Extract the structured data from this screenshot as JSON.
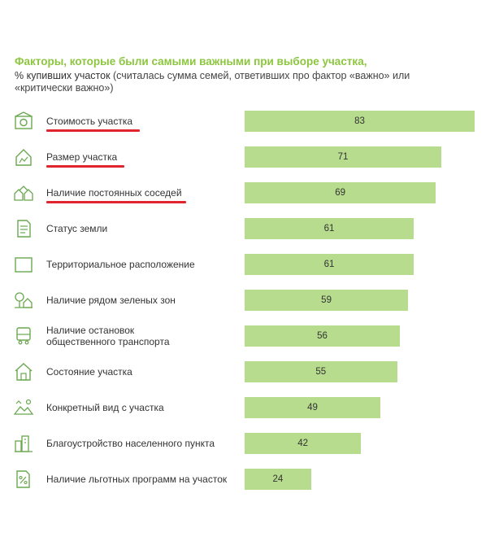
{
  "header": {
    "title": "Факторы, которые были самыми важными при выборе участка,",
    "subtitle_main": "% купивших участок",
    "subtitle_rest": " (считалась сумма семей, ответивших про фактор «важно» или «критически важно»)"
  },
  "colors": {
    "title": "#8cc63f",
    "bar": "#b7dc8d",
    "underline": "#e1252f",
    "icon": "#6aa84f"
  },
  "chart_data": {
    "type": "bar",
    "orientation": "horizontal",
    "title": "Факторы, которые были самыми важными при выборе участка,",
    "subtitle": "% купивших участок (считалась сумма семей, ответивших про фактор «важно» или «критически важно»)",
    "categories": [
      "Стоимость участка",
      "Размер участка",
      "Наличие постоянных соседей",
      "Статус земли",
      "Территориальное расположение",
      "Наличие рядом зеленых зон",
      "Наличие остановок\nобщественного транспорта",
      "Состояние участка",
      "Конкретный вид с участка",
      "Благоустройство населенного пункта",
      "Наличие льготных программ на участок"
    ],
    "values": [
      83,
      71,
      69,
      61,
      61,
      59,
      56,
      55,
      49,
      42,
      24
    ],
    "icons": [
      "money-house-icon",
      "area-house-icon",
      "neighbors-icon",
      "document-icon",
      "map-location-icon",
      "tree-house-icon",
      "bus-stop-icon",
      "house-check-icon",
      "landscape-view-icon",
      "town-icon",
      "discount-document-icon"
    ],
    "highlighted": [
      0,
      1,
      2
    ],
    "xlim": [
      0,
      83
    ],
    "grid": false,
    "legend": "none"
  }
}
